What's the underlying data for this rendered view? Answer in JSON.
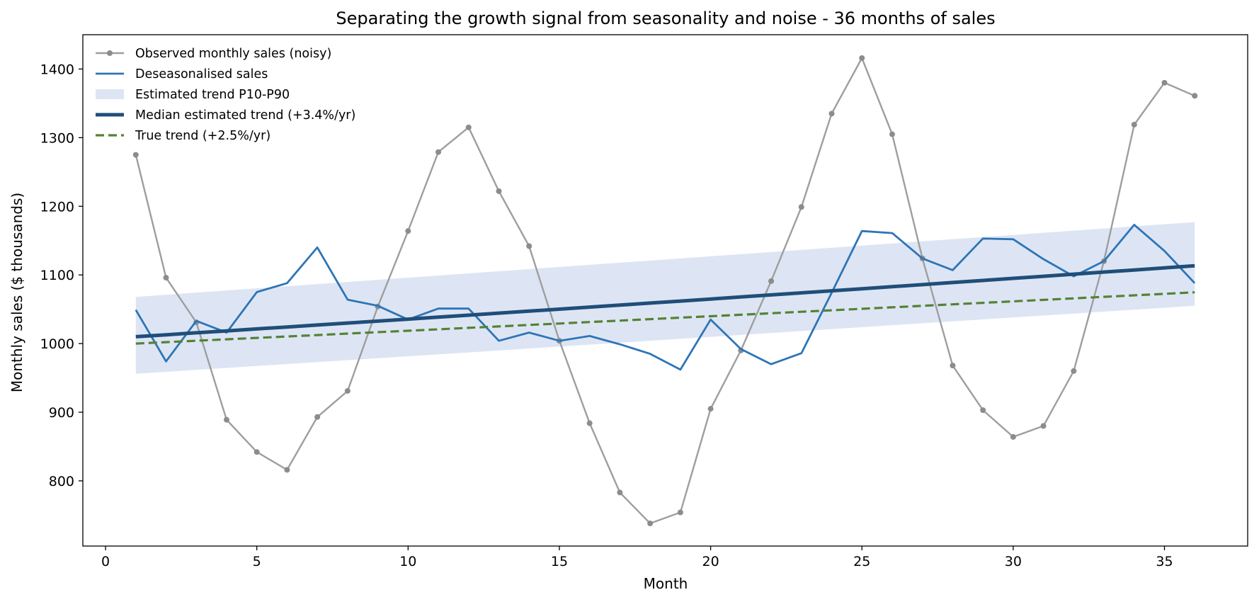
{
  "chart_data": {
    "type": "line",
    "title": "Separating the growth signal from seasonality and noise - 36 months of sales",
    "xlabel": "Month",
    "ylabel": "Monthly sales  ($ thousands)",
    "xlim": [
      -0.75,
      37.75
    ],
    "ylim": [
      705,
      1450
    ],
    "xticks": [
      0,
      5,
      10,
      15,
      20,
      25,
      30,
      35
    ],
    "yticks": [
      800,
      900,
      1000,
      1100,
      1200,
      1300,
      1400
    ],
    "grid": false,
    "legend_position": "top-left",
    "x": [
      1,
      2,
      3,
      4,
      5,
      6,
      7,
      8,
      9,
      10,
      11,
      12,
      13,
      14,
      15,
      16,
      17,
      18,
      19,
      20,
      21,
      22,
      23,
      24,
      25,
      26,
      27,
      28,
      29,
      30,
      31,
      32,
      33,
      34,
      35,
      36
    ],
    "series": [
      {
        "name": "Observed monthly sales (noisy)",
        "kind": "line-markers",
        "color": "#9e9e9e",
        "values": [
          1275,
          1096,
          1031,
          889,
          842,
          816,
          893,
          931,
          1054,
          1164,
          1279,
          1315,
          1222,
          1142,
          1004,
          884,
          783,
          738,
          754,
          905,
          990,
          1091,
          1199,
          1335,
          1416,
          1305,
          1124,
          968,
          903,
          864,
          880,
          960,
          1120,
          1319,
          1380,
          1361
        ]
      },
      {
        "name": "Deseasonalised sales",
        "kind": "line",
        "color": "#2e75b6",
        "values": [
          1049,
          974,
          1033,
          1016,
          1075,
          1088,
          1140,
          1064,
          1055,
          1035,
          1051,
          1051,
          1004,
          1016,
          1004,
          1011,
          999,
          985,
          962,
          1035,
          992,
          970,
          986,
          1074,
          1164,
          1161,
          1124,
          1107,
          1153,
          1152,
          1123,
          1098,
          1120,
          1173,
          1135,
          1088
        ]
      },
      {
        "name": "Estimated trend P10-P90",
        "kind": "band",
        "color": "#dde5f4",
        "x": [
          1,
          36
        ],
        "lower": [
          956,
          1055
        ],
        "upper": [
          1068,
          1177
        ]
      },
      {
        "name": "Median estimated trend (+3.4%/yr)",
        "kind": "line",
        "color": "#1f4e79",
        "start": 1010,
        "annual_growth": 0.034
      },
      {
        "name": "True trend (+2.5%/yr)",
        "kind": "dashed-line",
        "color": "#548235",
        "start": 1000,
        "annual_growth": 0.025
      }
    ]
  }
}
